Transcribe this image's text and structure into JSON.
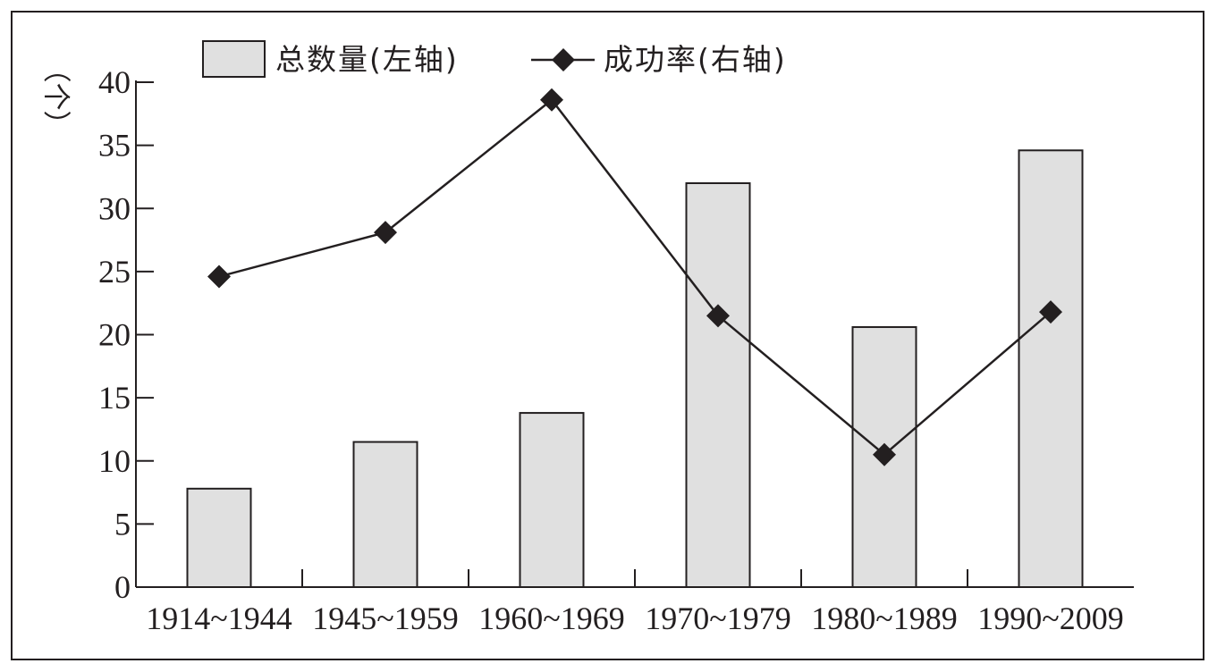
{
  "chart_data": {
    "type": "bar",
    "categories": [
      "1914~1944",
      "1945~1959",
      "1960~1969",
      "1970~1979",
      "1980~1989",
      "1990~2009"
    ],
    "y_unit_label": "（个）",
    "ylim": [
      0,
      40
    ],
    "y_ticks": [
      "0",
      "5",
      "10",
      "15",
      "20",
      "25",
      "30",
      "35",
      "40"
    ],
    "grid": false,
    "legend_position": "top-left",
    "series": [
      {
        "name": "总数量(左轴)",
        "type": "bar",
        "axis": "left",
        "color": "#e0e0e0",
        "values": [
          7.8,
          11.5,
          13.8,
          32,
          20.6,
          34.6
        ]
      },
      {
        "name": "成功率(右轴)",
        "type": "line",
        "axis": "right",
        "marker": "diamond",
        "color": "#231f20",
        "values": [
          24.6,
          28.1,
          38.6,
          21.5,
          10.5,
          21.8
        ]
      }
    ]
  }
}
